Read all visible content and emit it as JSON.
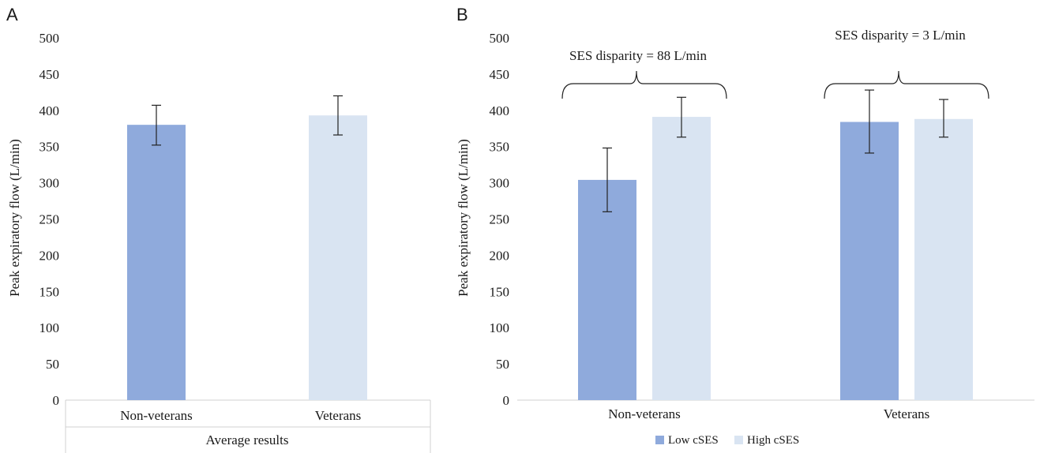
{
  "chart_data": [
    {
      "panel": "A",
      "type": "bar",
      "ylabel": "Peak expiratory flow (L/min)",
      "xlabel": "Average results",
      "ylim": [
        0,
        500
      ],
      "yticks": [
        0,
        50,
        100,
        150,
        200,
        250,
        300,
        350,
        400,
        450,
        500
      ],
      "categories": [
        "Non-veterans",
        "Veterans"
      ],
      "values": [
        380,
        393
      ],
      "error_low": [
        352,
        366
      ],
      "error_high": [
        407,
        420
      ],
      "colors": [
        "#8faadc",
        "#d9e4f2"
      ],
      "grid": false
    },
    {
      "panel": "B",
      "type": "bar",
      "ylabel": "Peak expiratory flow (L/min)",
      "ylim": [
        0,
        500
      ],
      "yticks": [
        0,
        50,
        100,
        150,
        200,
        250,
        300,
        350,
        400,
        450,
        500
      ],
      "categories": [
        "Non-veterans",
        "Veterans"
      ],
      "series": [
        {
          "name": "Low cSES",
          "color": "#8faadc",
          "values": [
            304,
            384
          ],
          "error_low": [
            260,
            341
          ],
          "error_high": [
            348,
            428
          ]
        },
        {
          "name": "High cSES",
          "color": "#d9e4f2",
          "values": [
            391,
            388
          ],
          "error_low": [
            363,
            363
          ],
          "error_high": [
            418,
            415
          ]
        }
      ],
      "annotations": [
        "SES disparity = 88 L/min",
        "SES disparity = 3 L/min"
      ],
      "legend_position": "bottom",
      "grid": false
    }
  ]
}
